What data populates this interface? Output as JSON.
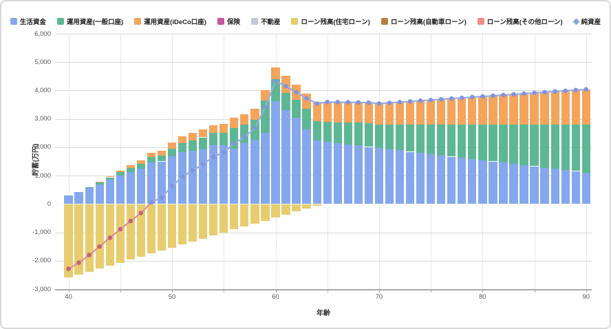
{
  "chart_data": {
    "type": "bar",
    "subtype": "stacked-bar-with-net-line",
    "title": "",
    "xlabel": "年齢",
    "ylabel": "貯蓄(万円)",
    "ylim": [
      -3000,
      6000
    ],
    "ytick_step": 1000,
    "ytick_labels": [
      "6,000",
      "5,000",
      "4,000",
      "3,000",
      "2,000",
      "1,000",
      "0",
      "-1,000",
      "-2,000",
      "-3,000"
    ],
    "xticks": [
      40,
      50,
      60,
      70,
      80,
      90
    ],
    "xtick_labels": [
      "40",
      "50",
      "60",
      "70",
      "80",
      "90"
    ],
    "minor_xtick_step": 5,
    "grid": true,
    "legend_position": "top",
    "ages": [
      40,
      41,
      42,
      43,
      44,
      45,
      46,
      47,
      48,
      49,
      50,
      51,
      52,
      53,
      54,
      55,
      56,
      57,
      58,
      59,
      60,
      61,
      62,
      63,
      64,
      65,
      66,
      67,
      68,
      69,
      70,
      71,
      72,
      73,
      74,
      75,
      76,
      77,
      78,
      79,
      80,
      81,
      82,
      83,
      84,
      85,
      86,
      87,
      88,
      89,
      90
    ],
    "series": [
      {
        "name": "生活資金",
        "type": "bar",
        "color": "#84A7EE",
        "values": [
          310,
          420,
          560,
          700,
          850,
          1000,
          1120,
          1250,
          1470,
          1500,
          1680,
          1820,
          1870,
          1920,
          2060,
          2060,
          1950,
          2140,
          2270,
          2510,
          3620,
          3300,
          3030,
          2630,
          2230,
          2190,
          2140,
          2100,
          2060,
          2010,
          1970,
          1930,
          1890,
          1840,
          1800,
          1760,
          1710,
          1670,
          1630,
          1590,
          1540,
          1500,
          1460,
          1410,
          1370,
          1330,
          1280,
          1240,
          1200,
          1160,
          1110
        ]
      },
      {
        "name": "運用資産(一般口座)",
        "type": "bar",
        "color": "#5EB794",
        "values": [
          0,
          0,
          30,
          60,
          90,
          120,
          150,
          170,
          190,
          200,
          280,
          330,
          370,
          430,
          440,
          450,
          720,
          650,
          690,
          1130,
          790,
          620,
          650,
          730,
          680,
          700,
          740,
          770,
          800,
          830,
          830,
          870,
          910,
          960,
          1000,
          1040,
          1090,
          1130,
          1170,
          1210,
          1260,
          1300,
          1340,
          1390,
          1430,
          1470,
          1520,
          1560,
          1600,
          1640,
          1690
        ]
      },
      {
        "name": "運用資産(iDeCo口座)",
        "type": "bar",
        "color": "#F5A45C",
        "values": [
          0,
          0,
          0,
          20,
          40,
          60,
          90,
          120,
          150,
          180,
          210,
          240,
          270,
          270,
          280,
          320,
          360,
          370,
          400,
          360,
          400,
          610,
          530,
          530,
          690,
          700,
          710,
          715,
          720,
          730,
          740,
          765,
          790,
          815,
          840,
          865,
          890,
          915,
          940,
          965,
          990,
          1015,
          1040,
          1065,
          1090,
          1115,
          1140,
          1165,
          1190,
          1215,
          1240
        ]
      },
      {
        "name": "保険",
        "type": "bar",
        "color": "#C2569C",
        "values": [
          0,
          0,
          0,
          0,
          0,
          0,
          0,
          0,
          0,
          0,
          0,
          0,
          0,
          0,
          0,
          0,
          0,
          0,
          0,
          0,
          0,
          0,
          0,
          0,
          0,
          0,
          0,
          0,
          0,
          0,
          0,
          0,
          0,
          0,
          0,
          0,
          0,
          0,
          0,
          0,
          0,
          0,
          0,
          0,
          0,
          0,
          0,
          0,
          0,
          0,
          0
        ]
      },
      {
        "name": "不動産",
        "type": "bar",
        "color": "#C3C9D6",
        "values": [
          0,
          0,
          0,
          0,
          0,
          0,
          0,
          0,
          0,
          0,
          0,
          0,
          0,
          0,
          0,
          0,
          0,
          0,
          0,
          0,
          0,
          0,
          0,
          0,
          0,
          0,
          0,
          0,
          0,
          0,
          0,
          0,
          0,
          0,
          0,
          0,
          0,
          0,
          0,
          0,
          0,
          0,
          0,
          0,
          0,
          0,
          0,
          0,
          0,
          0,
          0
        ]
      },
      {
        "name": "ローン残高(住宅ローン)",
        "type": "bar",
        "color": "#E7CD6E",
        "values": [
          -2600,
          -2490,
          -2390,
          -2280,
          -2170,
          -2070,
          -1960,
          -1860,
          -1750,
          -1650,
          -1540,
          -1430,
          -1330,
          -1220,
          -1120,
          -1010,
          -900,
          -800,
          -690,
          -590,
          -480,
          -380,
          -270,
          -170,
          -60,
          0,
          0,
          0,
          0,
          0,
          0,
          0,
          0,
          0,
          0,
          0,
          0,
          0,
          0,
          0,
          0,
          0,
          0,
          0,
          0,
          0,
          0,
          0,
          0,
          0,
          0
        ]
      },
      {
        "name": "ローン残高(自動車ローン)",
        "type": "bar",
        "color": "#B5823D",
        "values": [
          0,
          0,
          0,
          0,
          0,
          0,
          0,
          0,
          0,
          0,
          0,
          0,
          0,
          0,
          0,
          0,
          0,
          0,
          0,
          0,
          0,
          0,
          0,
          0,
          0,
          0,
          0,
          0,
          0,
          0,
          0,
          0,
          0,
          0,
          0,
          0,
          0,
          0,
          0,
          0,
          0,
          0,
          0,
          0,
          0,
          0,
          0,
          0,
          0,
          0,
          0
        ]
      },
      {
        "name": "ローン残高(その他ローン)",
        "type": "bar",
        "color": "#F18C83",
        "values": [
          0,
          0,
          0,
          0,
          0,
          0,
          0,
          0,
          0,
          0,
          0,
          0,
          0,
          0,
          0,
          0,
          0,
          0,
          0,
          0,
          0,
          0,
          0,
          0,
          0,
          0,
          0,
          0,
          0,
          0,
          0,
          0,
          0,
          0,
          0,
          0,
          0,
          0,
          0,
          0,
          0,
          0,
          0,
          0,
          0,
          0,
          0,
          0,
          0,
          0,
          0
        ]
      },
      {
        "name": "純資産",
        "type": "line",
        "legend_color": "#8CA0E0",
        "legend_marker": "diamond",
        "color_positive": "#9AABE4",
        "marker_positive": "#8095DC",
        "color_negative": "#E18E97",
        "marker_negative": "#C4637B",
        "values": [
          -2290,
          -2070,
          -1800,
          -1500,
          -1190,
          -890,
          -600,
          -320,
          60,
          230,
          630,
          960,
          1180,
          1400,
          1660,
          1820,
          2130,
          2360,
          2670,
          3410,
          4330,
          4150,
          3940,
          3720,
          3540,
          3590,
          3590,
          3585,
          3580,
          3570,
          3540,
          3565,
          3590,
          3615,
          3640,
          3665,
          3690,
          3715,
          3740,
          3765,
          3790,
          3815,
          3840,
          3865,
          3890,
          3915,
          3940,
          3965,
          3990,
          4015,
          4040
        ]
      }
    ]
  }
}
